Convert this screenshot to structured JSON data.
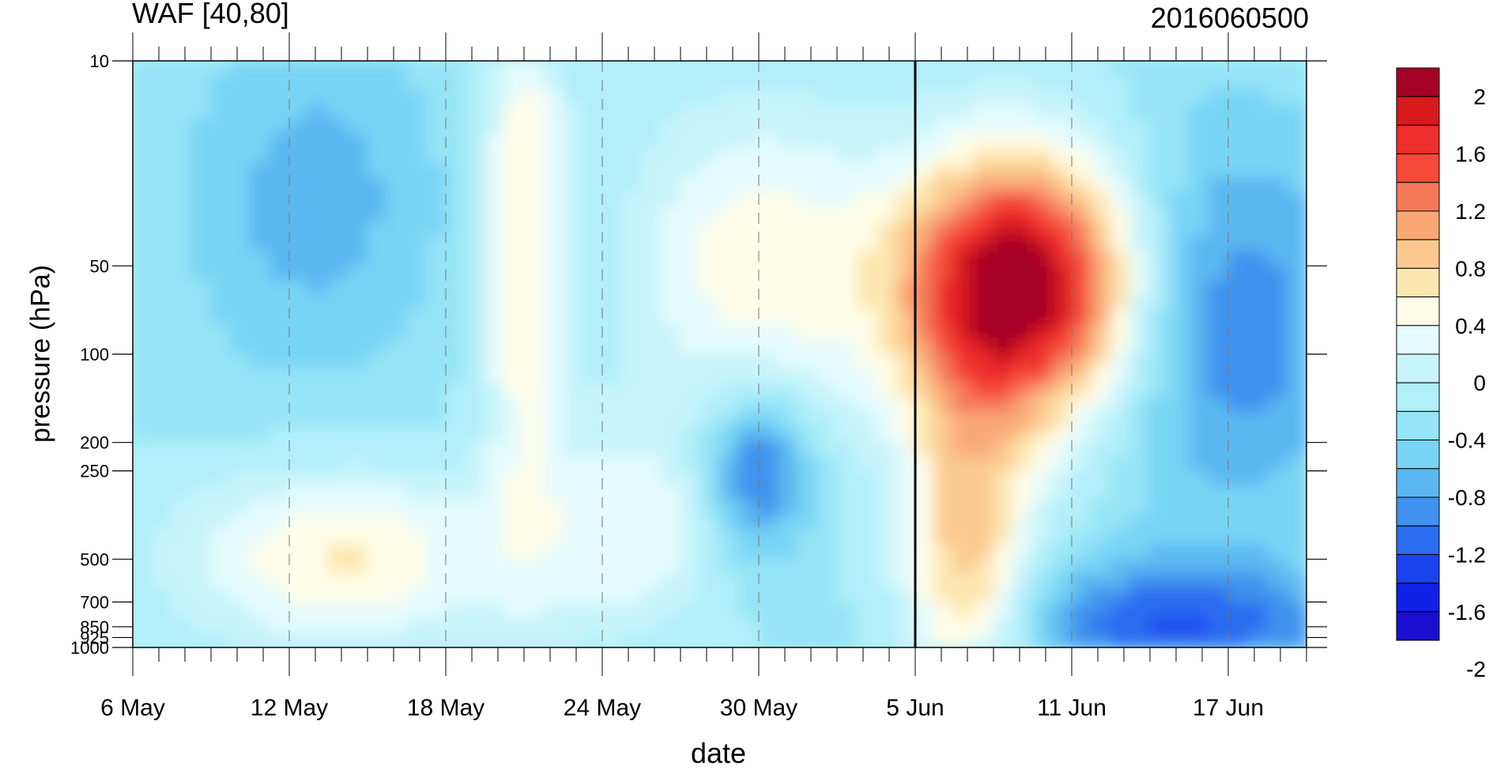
{
  "chart_data": {
    "type": "heatmap",
    "title": "WAF [40,80]",
    "subtitle": "2016060500",
    "xlabel": "date",
    "ylabel": "pressure (hPa)",
    "x_ticks": [
      "6 May",
      "12 May",
      "18 May",
      "24 May",
      "30 May",
      "5 Jun",
      "11 Jun",
      "17 Jun"
    ],
    "y_ticks": [
      10,
      50,
      100,
      200,
      250,
      500,
      700,
      850,
      925,
      1000
    ],
    "y_scale": "log",
    "ylim": [
      1000,
      10
    ],
    "xlim": [
      "2016-05-06",
      "2016-06-20"
    ],
    "current_date_marker": "5 Jun",
    "colorbar": {
      "labels": [
        "2",
        "1.6",
        "1.2",
        "0.8",
        "0.4",
        "0",
        "-0.4",
        "-0.8",
        "-1.2",
        "-1.6",
        "-2"
      ],
      "colors": [
        "#a50026",
        "#d7191c",
        "#ee2d2d",
        "#f54a3a",
        "#f67a5a",
        "#f9a874",
        "#fbc98f",
        "#fde7b0",
        "#fffde8",
        "#e5fbfd",
        "#c8f4fb",
        "#b1eff9",
        "#95e4f7",
        "#78d4f5",
        "#5bb7f1",
        "#4092ee",
        "#2a6cf0",
        "#1a43ee",
        "#1020e6",
        "#1a0fd1"
      ]
    },
    "features": [
      {
        "label": "max",
        "date": "9 Jun",
        "pressure": 55,
        "value": 2.0
      },
      {
        "label": "min",
        "date": "30 May",
        "pressure": 250,
        "value": -1.4
      },
      {
        "label": "min",
        "date": "14 Jun",
        "pressure": 925,
        "value": -1.6
      }
    ]
  }
}
